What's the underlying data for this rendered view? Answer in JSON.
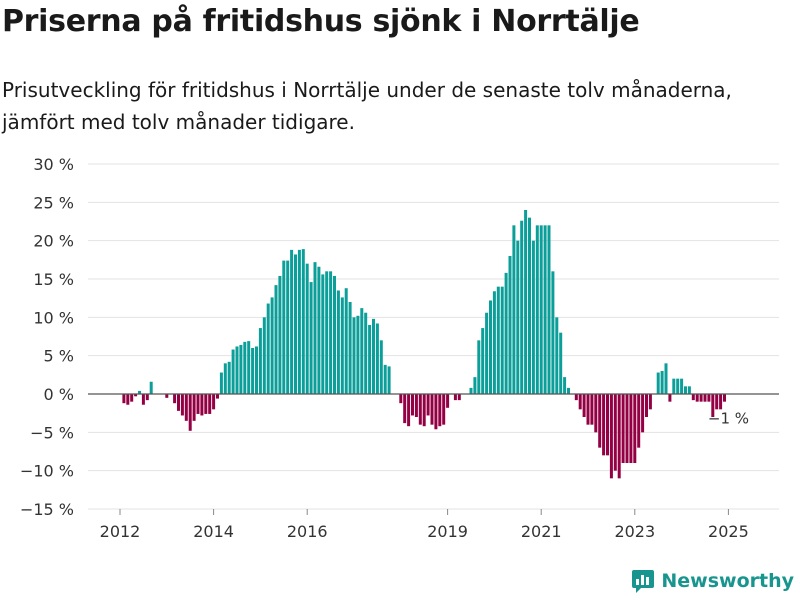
{
  "title": "Priserna på fritidshus sjönk i Norrtälje",
  "subtitle": "Prisutveckling för fritidshus i Norrtälje under de senaste tolv månaderna, jämfört med tolv månader tidigare.",
  "brand": {
    "name": "Newsworthy",
    "color": "#19958f"
  },
  "colors": {
    "positive": "#0c9e99",
    "negative": "#930044",
    "grid": "#e3e3e3",
    "axis": "#555555",
    "text": "#333333"
  },
  "chart_data": {
    "type": "bar",
    "title": "Priserna på fritidshus sjönk i Norrtälje",
    "xlabel": "",
    "ylabel": "",
    "ylim": [
      -15,
      30
    ],
    "yticks": [
      -15,
      -10,
      -5,
      0,
      5,
      10,
      15,
      20,
      25,
      30
    ],
    "ytick_labels": [
      "−15 %",
      "−10 %",
      "−5 %",
      "0 %",
      "5 %",
      "10 %",
      "15 %",
      "20 %",
      "25 %",
      "30 %"
    ],
    "x_start": "2012-01",
    "xticks": [
      {
        "label": "2012",
        "index": 0
      },
      {
        "label": "2014",
        "index": 24
      },
      {
        "label": "2016",
        "index": 48
      },
      {
        "label": "2019",
        "index": 84
      },
      {
        "label": "2021",
        "index": 108
      },
      {
        "label": "2023",
        "index": 132
      },
      {
        "label": "2025",
        "index": 156
      }
    ],
    "end_label": "−1 %",
    "unit": "%",
    "values": [
      0,
      -1.2,
      -1.4,
      -1,
      -0.3,
      0.4,
      -1.4,
      -0.8,
      1.6,
      0,
      0,
      0,
      -0.5,
      0,
      -1.2,
      -2.2,
      -2.8,
      -3.5,
      -4.8,
      -3.5,
      -2.6,
      -2.8,
      -2.6,
      -2.6,
      -2,
      -0.6,
      2.8,
      4,
      4.2,
      5.8,
      6.2,
      6.4,
      6.8,
      6.9,
      6,
      6.2,
      8.6,
      10,
      11.8,
      12.6,
      14.2,
      15.4,
      17.4,
      17.4,
      18.8,
      18.2,
      18.8,
      18.9,
      17,
      14.6,
      17.2,
      16.6,
      15.6,
      16,
      16,
      15.4,
      13.5,
      12.6,
      13.8,
      12,
      10,
      10.2,
      11.2,
      10.6,
      9,
      9.8,
      9.2,
      7,
      3.8,
      3.6,
      0,
      0,
      -1.2,
      -3.8,
      -4.2,
      -2.8,
      -3,
      -4,
      -4.2,
      -2.8,
      -4,
      -4.6,
      -4.2,
      -4,
      -1.8,
      0,
      -0.8,
      -0.8,
      0,
      0,
      0.8,
      2.2,
      7,
      8.6,
      10.6,
      12.2,
      13.4,
      14,
      14,
      15.8,
      18,
      22,
      20,
      22.6,
      24,
      23,
      20,
      22,
      22,
      22,
      22,
      16,
      10,
      8,
      2.2,
      0.8,
      0,
      -0.8,
      -2,
      -3,
      -4,
      -4,
      -5,
      -7,
      -8,
      -8,
      -11,
      -10,
      -11,
      -9,
      -9,
      -9,
      -9,
      -7,
      -5,
      -3,
      -2,
      0,
      2.8,
      3,
      4,
      -1,
      2,
      2,
      2,
      1,
      1,
      -0.8,
      -1,
      -1,
      -1,
      -1,
      -3,
      -2,
      -2,
      -1
    ]
  }
}
